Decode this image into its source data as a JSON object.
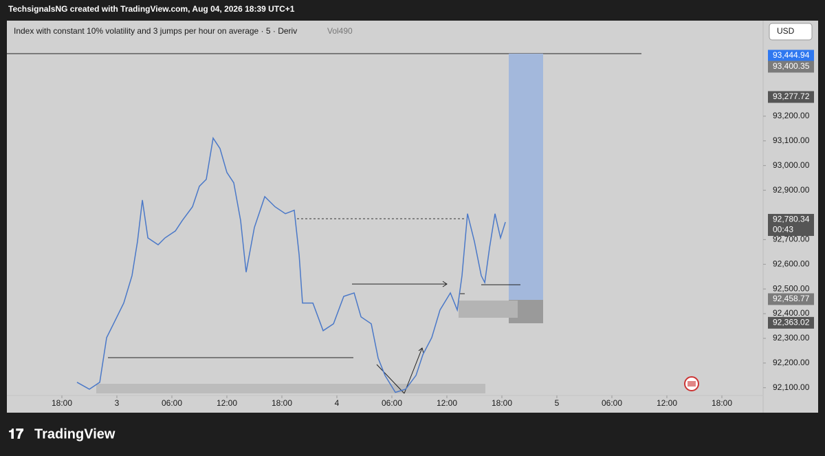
{
  "header": "TechsignalsNG created with TradingView.com, Aug 04, 2026 18:39 UTC+1",
  "footer_logo": "TradingView",
  "currency_button": "USD",
  "chart_data": {
    "type": "line",
    "title": "Index with constant 10% volatility and 3 jumps per hour on average · 5 · Deriv",
    "subtitle": "Vol490",
    "xlim": [
      -6,
      76.5
    ],
    "ylim": [
      92063,
      93587
    ],
    "xticks": [
      {
        "value": 0,
        "label": "18:00"
      },
      {
        "value": 6,
        "label": "3"
      },
      {
        "value": 12,
        "label": "06:00"
      },
      {
        "value": 18,
        "label": "12:00"
      },
      {
        "value": 24,
        "label": "18:00"
      },
      {
        "value": 30,
        "label": "4"
      },
      {
        "value": 36,
        "label": "06:00"
      },
      {
        "value": 42,
        "label": "12:00"
      },
      {
        "value": 48,
        "label": "18:00"
      },
      {
        "value": 54,
        "label": "5"
      },
      {
        "value": 60,
        "label": "06:00"
      },
      {
        "value": 66,
        "label": "12:00"
      },
      {
        "value": 72,
        "label": "18:00"
      }
    ],
    "yticks": [
      {
        "value": 92100,
        "label": "92,100.00"
      },
      {
        "value": 92200,
        "label": "92,200.00"
      },
      {
        "value": 92300,
        "label": "92,300.00"
      },
      {
        "value": 92400,
        "label": "92,400.00"
      },
      {
        "value": 92500,
        "label": "92,500.00"
      },
      {
        "value": 92600,
        "label": "92,600.00"
      },
      {
        "value": 92700,
        "label": "92,700.00"
      },
      {
        "value": 92900,
        "label": "92,900.00"
      },
      {
        "value": 93000,
        "label": "93,000.00"
      },
      {
        "value": 93100,
        "label": "93,100.00"
      },
      {
        "value": 93200,
        "label": "93,200.00"
      }
    ],
    "price_labels": [
      {
        "value": 93444.94,
        "label": "93,444.94",
        "color": "#2f78f0"
      },
      {
        "value": 93400.35,
        "label": "93,400.35",
        "color": "#7b7b7b"
      },
      {
        "value": 93277.72,
        "label": "93,277.72",
        "color": "#555555"
      },
      {
        "value": 92780.34,
        "label": "92,780.34",
        "color": "#555555",
        "countdown": "00:43"
      },
      {
        "value": 92458.77,
        "label": "92,458.77",
        "color": "#7b7b7b"
      },
      {
        "value": 92363.02,
        "label": "92,363.02",
        "color": "#555555"
      }
    ],
    "series": [
      {
        "name": "Vol490",
        "color": "#4a78c8",
        "x": [
          1.65,
          3,
          4.13,
          4.88,
          5.63,
          6.75,
          7.65,
          8.25,
          8.78,
          9.38,
          10.5,
          11.25,
          12.38,
          13.13,
          14.25,
          15,
          15.75,
          16.5,
          17.25,
          18,
          18.75,
          19.5,
          20.1,
          21,
          22.13,
          23.25,
          24.38,
          25.35,
          25.88,
          26.25,
          27.38,
          28.5,
          29.63,
          30.75,
          31.88,
          32.63,
          33.75,
          34.5,
          35.25,
          36.38,
          37.5,
          38.63,
          39.38,
          40.35,
          41.25,
          42.38,
          43.13,
          43.65,
          44.25,
          45,
          45.75,
          46.13,
          46.65,
          47.25,
          47.85,
          48.38
        ],
        "values": [
          92122,
          92094,
          92122,
          92303,
          92359,
          92443,
          92554,
          92693,
          92860,
          92707,
          92679,
          92707,
          92735,
          92777,
          92833,
          92916,
          92944,
          93111,
          93069,
          92972,
          92930,
          92777,
          92568,
          92749,
          92874,
          92833,
          92805,
          92819,
          92638,
          92443,
          92443,
          92331,
          92359,
          92470,
          92484,
          92387,
          92359,
          92220,
          92150,
          92081,
          92094,
          92150,
          92234,
          92303,
          92415,
          92484,
          92415,
          92554,
          92805,
          92693,
          92554,
          92526,
          92666,
          92805,
          92707,
          92771
        ]
      }
    ],
    "grid": false
  }
}
